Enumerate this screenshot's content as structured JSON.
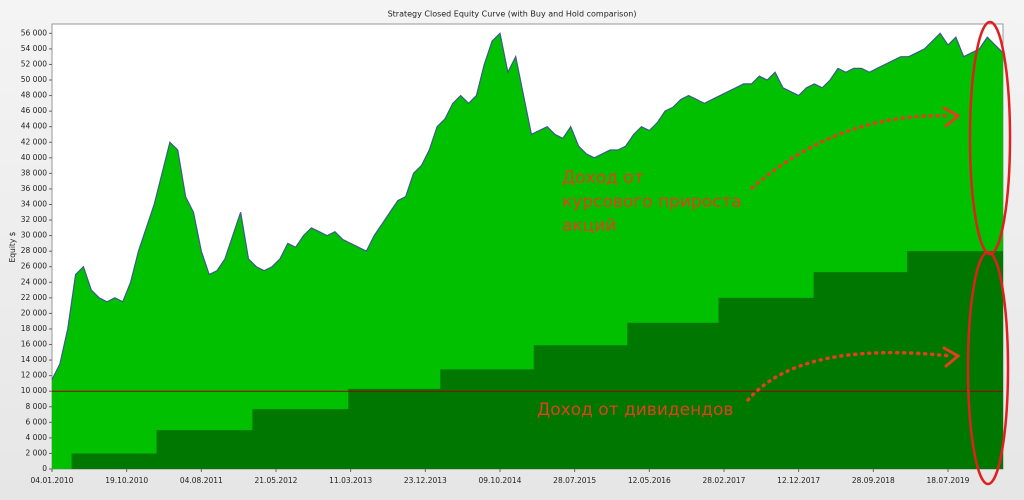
{
  "chart_data": {
    "type": "area",
    "title": "Strategy Closed Equity Curve (with Buy and Hold comparison)",
    "y_label": "Equity $",
    "xlim": [
      0,
      121
    ],
    "ylim": [
      0,
      57200
    ],
    "xticks": [
      {
        "value": 0,
        "label": "04.01.2010"
      },
      {
        "value": 9.5,
        "label": "19.10.2010"
      },
      {
        "value": 19,
        "label": "04.08.2011"
      },
      {
        "value": 28.5,
        "label": "21.05.2012"
      },
      {
        "value": 38,
        "label": "11.03.2013"
      },
      {
        "value": 47.5,
        "label": "23.12.2013"
      },
      {
        "value": 57,
        "label": "09.10.2014"
      },
      {
        "value": 66.5,
        "label": "28.07.2015"
      },
      {
        "value": 76,
        "label": "12.05.2016"
      },
      {
        "value": 85.5,
        "label": "28.02.2017"
      },
      {
        "value": 95,
        "label": "12.12.2017"
      },
      {
        "value": 104.5,
        "label": "28.09.2018"
      },
      {
        "value": 114,
        "label": "18.07.2019"
      }
    ],
    "yticks": [
      0,
      {
        "value": 2000,
        "label": "2 000"
      },
      {
        "value": 4000,
        "label": "4 000"
      },
      {
        "value": 6000,
        "label": "6 000"
      },
      {
        "value": 8000,
        "label": "8 000"
      },
      {
        "value": 10000,
        "label": "10 000"
      },
      {
        "value": 12000,
        "label": "12 000"
      },
      {
        "value": 14000,
        "label": "14 000"
      },
      {
        "value": 16000,
        "label": "16 000"
      },
      {
        "value": 18000,
        "label": "18 000"
      },
      {
        "value": 20000,
        "label": "20 000"
      },
      {
        "value": 22000,
        "label": "22 000"
      },
      {
        "value": 24000,
        "label": "24 000"
      },
      {
        "value": 26000,
        "label": "26 000"
      },
      {
        "value": 28000,
        "label": "28 000"
      },
      {
        "value": 30000,
        "label": "30 000"
      },
      {
        "value": 32000,
        "label": "32 000"
      },
      {
        "value": 34000,
        "label": "34 000"
      },
      {
        "value": 36000,
        "label": "36 000"
      },
      {
        "value": 38000,
        "label": "38 000"
      },
      {
        "value": 40000,
        "label": "40 000"
      },
      {
        "value": 42000,
        "label": "42 000"
      },
      {
        "value": 44000,
        "label": "44 000"
      },
      {
        "value": 46000,
        "label": "46 000"
      },
      {
        "value": 48000,
        "label": "48 000"
      },
      {
        "value": 50000,
        "label": "50 000"
      },
      {
        "value": 52000,
        "label": "52 000"
      },
      {
        "value": 54000,
        "label": "54 000"
      },
      {
        "value": 56000,
        "label": "56 000"
      }
    ],
    "reference_line": {
      "value": 10000,
      "color": "#a00000"
    },
    "series": [
      {
        "color": "#00c000",
        "line_color": "#3c5a8c",
        "x": [
          0,
          1,
          2,
          3,
          4,
          5,
          6,
          7,
          8,
          9,
          10,
          11,
          12,
          13,
          14,
          15,
          16,
          17,
          18,
          19,
          20,
          21,
          22,
          23,
          24,
          25,
          26,
          27,
          28,
          29,
          30,
          31,
          32,
          33,
          34,
          35,
          36,
          37,
          38,
          39,
          40,
          41,
          42,
          43,
          44,
          45,
          46,
          47,
          48,
          49,
          50,
          51,
          52,
          53,
          54,
          55,
          56,
          57,
          58,
          59,
          60,
          61,
          62,
          63,
          64,
          65,
          66,
          67,
          68,
          69,
          70,
          71,
          72,
          73,
          74,
          75,
          76,
          77,
          78,
          79,
          80,
          81,
          82,
          83,
          84,
          85,
          86,
          87,
          88,
          89,
          90,
          91,
          92,
          93,
          94,
          95,
          96,
          97,
          98,
          99,
          100,
          101,
          102,
          103,
          104,
          105,
          106,
          107,
          108,
          109,
          110,
          111,
          112,
          113,
          114,
          115,
          116,
          117,
          118,
          119,
          120,
          121
        ],
        "values": [
          11500,
          13500,
          18000,
          25000,
          26000,
          23000,
          22000,
          21500,
          22000,
          21500,
          24000,
          28000,
          31000,
          34000,
          38000,
          42000,
          41000,
          35000,
          33000,
          28000,
          25000,
          25500,
          27000,
          30000,
          33000,
          27000,
          26000,
          25500,
          26000,
          27000,
          29000,
          28500,
          30000,
          31000,
          30500,
          30000,
          30500,
          29500,
          29000,
          28500,
          28000,
          30000,
          31500,
          33000,
          34500,
          35000,
          38000,
          39000,
          41000,
          44000,
          45000,
          47000,
          48000,
          47000,
          48000,
          52000,
          55000,
          56000,
          51000,
          53000,
          48000,
          43000,
          43500,
          44000,
          43000,
          42500,
          44000,
          41500,
          40500,
          40000,
          40500,
          41000,
          41000,
          41500,
          43000,
          44000,
          43500,
          44500,
          46000,
          46500,
          47500,
          48000,
          47500,
          47000,
          47500,
          48000,
          48500,
          49000,
          49500,
          49500,
          50500,
          50000,
          51000,
          49000,
          48500,
          48000,
          49000,
          49500,
          49000,
          50000,
          51500,
          51000,
          51500,
          51500,
          51000,
          51500,
          52000,
          52500,
          53000,
          53000,
          53500,
          54000,
          55000,
          56000,
          54500,
          55500,
          53000,
          53500,
          54000,
          55500,
          54500,
          53500
        ]
      },
      {
        "color": "#007800",
        "step": true,
        "x": [
          0,
          2.5,
          13.3,
          25.5,
          37.7,
          49.4,
          61.3,
          73.2,
          84.8,
          96.9,
          108.8
        ],
        "values": [
          0,
          2000,
          5000,
          7700,
          10300,
          12800,
          15900,
          18800,
          22000,
          25300,
          28000
        ]
      }
    ],
    "annotations": [
      {
        "text": [
          "Доход от",
          "курсового прироста",
          "акций"
        ],
        "color": "#e0401c"
      },
      {
        "text": [
          "Доход от дивидендов"
        ],
        "color": "#e0401c"
      }
    ]
  }
}
